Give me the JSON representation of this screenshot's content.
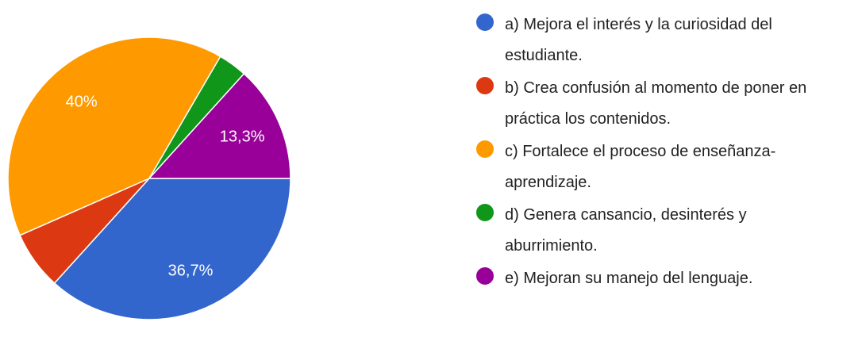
{
  "chart_data": {
    "type": "pie",
    "categories": [
      "a) Mejora el interés y la curiosidad del estudiante.",
      "b) Crea confusión al momento de poner en práctica los contenidos.",
      "c) Fortalece el proceso de enseñanza-aprendizaje.",
      "d) Genera cansancio, desinterés y aburrimiento.",
      "e) Mejoran su manejo del lenguaje."
    ],
    "values": [
      36.7,
      6.7,
      40,
      3.3,
      13.3
    ],
    "value_labels": [
      "36,7%",
      null,
      "40%",
      null,
      "13,3%"
    ],
    "colors": [
      "#3366cc",
      "#dc3912",
      "#ff9900",
      "#109618",
      "#990099"
    ],
    "legend": "right"
  }
}
